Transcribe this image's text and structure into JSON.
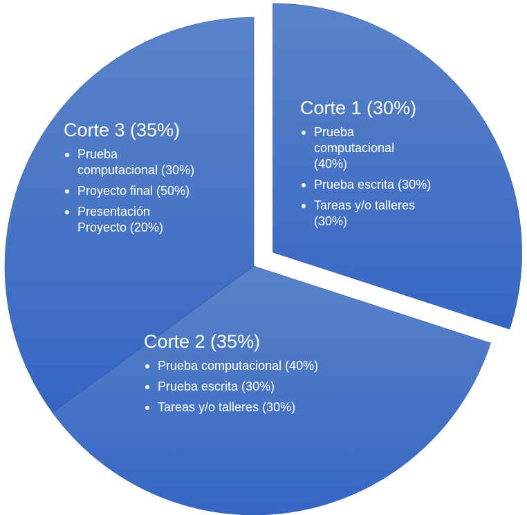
{
  "chart_data": {
    "type": "pie",
    "slices": [
      {
        "title": "Corte 1 (30%)",
        "value": 30,
        "items": [
          "Prueba computacional (40%)",
          "Prueba escrita (30%)",
          "Tareas y/o talleres (30%)"
        ]
      },
      {
        "title": "Corte 2 (35%)",
        "value": 35,
        "items": [
          "Prueba computacional (40%)",
          "Prueba escrita (30%)",
          "Tareas y/o talleres (30%)"
        ]
      },
      {
        "title": "Corte 3 (35%)",
        "value": 35,
        "items": [
          "Prueba computacional (30%)",
          "Proyecto final (50%)",
          "Presentación Proyecto (20%)"
        ]
      }
    ],
    "start_angle_deg": 0,
    "direction": "clockwise",
    "exploded_slice": "Corte 1 (30%)",
    "legend": "none",
    "colors": {
      "fill_top": "#5a83c8",
      "fill_bottom": "#3666c3",
      "text": "#ffffff",
      "background": "#ffffff"
    }
  }
}
